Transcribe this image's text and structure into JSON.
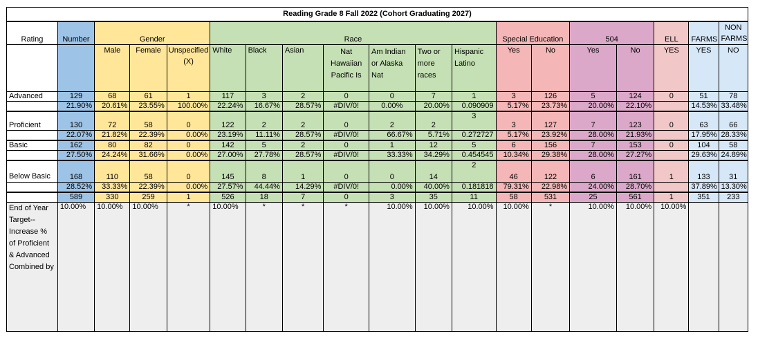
{
  "title": "Reading Grade 8 Fall 2022 (Cohort Graduating 2027)",
  "header": {
    "rating": "Rating",
    "number": "Number",
    "gender": "Gender",
    "race": "Race",
    "sped": "Special Education",
    "s504": "504",
    "ell": "ELL",
    "farms": "FARMS",
    "nonfarms": "NON FARMS",
    "sub": {
      "male": "Male",
      "female": "Female",
      "unspecified": "Unspecified (X)",
      "white": "White",
      "black": "Black",
      "asian": "Asian",
      "nathaw": "Nat Hawaiian Pacific Is",
      "amind": "Am Indian or Alaska Nat",
      "twomore": "Two or more races",
      "hispanic": "Hispanic Latino",
      "sped_yes": "Yes",
      "sped_no": "No",
      "s504_yes": "Yes",
      "s504_no": "No",
      "ell_yes": "YES",
      "farms_yes": "YES",
      "nonfarms_no": "NO"
    }
  },
  "rows": {
    "advanced": {
      "label": "Advanced",
      "counts": [
        "129",
        "68",
        "61",
        "1",
        "117",
        "3",
        "2",
        "0",
        "0",
        "7",
        "1",
        "3",
        "126",
        "5",
        "124",
        "0",
        "51",
        "78"
      ],
      "pcts": [
        "21.90%",
        "20.61%",
        "23.55%",
        "100.00%",
        "22.24%",
        "16.67%",
        "28.57%",
        "#DIV/0!",
        "0.00%",
        "20.00%",
        "0.090909",
        "5.17%",
        "23.73%",
        "20.00%",
        "22.10%",
        "",
        "14.53%",
        "33.48%"
      ]
    },
    "proficient": {
      "label": "Proficient",
      "hisp_extra": "3",
      "counts": [
        "130",
        "72",
        "58",
        "0",
        "122",
        "2",
        "2",
        "0",
        "2",
        "2",
        "",
        "3",
        "127",
        "7",
        "123",
        "0",
        "63",
        "66"
      ],
      "pcts": [
        "22.07%",
        "21.82%",
        "22.39%",
        "0.00%",
        "23.19%",
        "11.11%",
        "28.57%",
        "#DIV/0!",
        "66.67%",
        "5.71%",
        "0.272727",
        "5.17%",
        "23.92%",
        "28.00%",
        "21.93%",
        "",
        "17.95%",
        "28.33%"
      ]
    },
    "basic": {
      "label": "Basic",
      "counts": [
        "162",
        "80",
        "82",
        "0",
        "142",
        "5",
        "2",
        "0",
        "1",
        "12",
        "5",
        "6",
        "156",
        "7",
        "153",
        "0",
        "104",
        "58"
      ],
      "pcts": [
        "27.50%",
        "24.24%",
        "31.66%",
        "0.00%",
        "27.00%",
        "27.78%",
        "28.57%",
        "#DIV/0!",
        "33.33%",
        "34.29%",
        "0.454545",
        "10.34%",
        "29.38%",
        "28.00%",
        "27.27%",
        "",
        "29.63%",
        "24.89%"
      ]
    },
    "below": {
      "label": "Below Basic",
      "hisp_extra": "2",
      "counts": [
        "168",
        "110",
        "58",
        "0",
        "145",
        "8",
        "1",
        "0",
        "0",
        "14",
        "",
        "46",
        "122",
        "6",
        "161",
        "1",
        "133",
        "31"
      ],
      "pcts": [
        "28.52%",
        "33.33%",
        "22.39%",
        "0.00%",
        "27.57%",
        "44.44%",
        "14.29%",
        "#DIV/0!",
        "0.00%",
        "40.00%",
        "0.181818",
        "79.31%",
        "22.98%",
        "24.00%",
        "28.70%",
        "",
        "37.89%",
        "13.30%"
      ]
    }
  },
  "totals": [
    "589",
    "330",
    "259",
    "1",
    "526",
    "18",
    "7",
    "0",
    "3",
    "35",
    "11",
    "58",
    "531",
    "25",
    "561",
    "1",
    "351",
    "233"
  ],
  "target": {
    "label": "End of Year Target-- Increase % of Proficient & Advanced Combined by",
    "values": [
      "10.00%",
      "10.00%",
      "10.00%",
      "*",
      "10.00%",
      "*",
      "*",
      "*",
      "10.00%",
      "10.00%",
      "10.00%",
      "10.00%",
      "*",
      "10.00%",
      "10.00%",
      "10.00%",
      "",
      ""
    ]
  }
}
